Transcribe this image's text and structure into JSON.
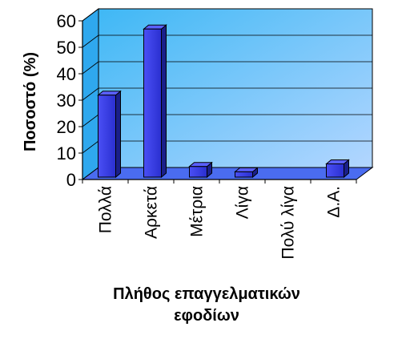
{
  "chart_data": {
    "type": "bar",
    "categories": [
      "Πολλά",
      "Αρκετά",
      "Μέτρια",
      "Λίγα",
      "Πολύ λίγα",
      "Δ.Α."
    ],
    "values": [
      31,
      56,
      4,
      2,
      0,
      5
    ],
    "ylabel": "Ποσοστό (%)",
    "xlabel_lines": [
      "Πλήθος επαγγελματικών",
      "εφοδίων"
    ],
    "ylim": [
      0,
      60
    ],
    "yticks": [
      0,
      10,
      20,
      30,
      40,
      50,
      60
    ],
    "grid": true,
    "style": "3d",
    "colors": {
      "bar_front": "#3a3ff0",
      "bar_side": "#1a1f8a",
      "bar_top": "#5a60ff",
      "wall_light": "#3fb8f5",
      "wall_dark": "#a9d2ff",
      "floor": "#4a6cf0"
    }
  }
}
